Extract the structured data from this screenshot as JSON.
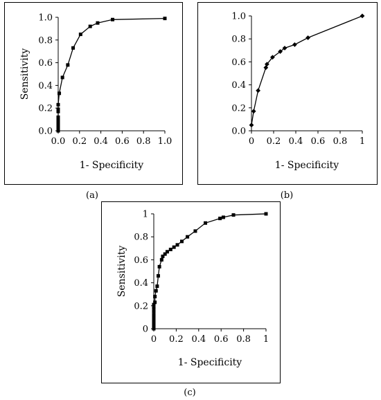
{
  "chart_data": [
    {
      "type": "line",
      "panel_label": "(a)",
      "xlabel": "1- Specificity",
      "ylabel": "Sensitivity",
      "xlim": [
        0,
        1
      ],
      "ylim": [
        0,
        1
      ],
      "xticks": [
        "0.0",
        "0.2",
        "0.4",
        "0.6",
        "0.8",
        "1.0"
      ],
      "yticks": [
        "0.0",
        "0.2",
        "0.4",
        "0.6",
        "0.8",
        "1.0"
      ],
      "marker": "square",
      "grid": false,
      "x": [
        0,
        0,
        0,
        0,
        0,
        0,
        0,
        0,
        0,
        0,
        0,
        0,
        0,
        0.01,
        0.04,
        0.09,
        0.14,
        0.21,
        0.3,
        0.37,
        0.51,
        1.0
      ],
      "y": [
        0,
        0.01,
        0.02,
        0.03,
        0.04,
        0.05,
        0.06,
        0.08,
        0.1,
        0.12,
        0.17,
        0.19,
        0.23,
        0.33,
        0.47,
        0.58,
        0.73,
        0.85,
        0.92,
        0.95,
        0.98,
        0.99
      ]
    },
    {
      "type": "line",
      "panel_label": "(b)",
      "xlabel": "1- Specificity",
      "ylabel": "",
      "xlim": [
        0,
        1
      ],
      "ylim": [
        0,
        1
      ],
      "xticks": [
        "0",
        "0.2",
        "0.4",
        "0.6",
        "0.8",
        "1"
      ],
      "yticks": [
        "0.0",
        "0.2",
        "0.4",
        "0.6",
        "0.8",
        "1.0"
      ],
      "marker": "diamond",
      "grid": false,
      "x": [
        0.0,
        0.02,
        0.06,
        0.13,
        0.14,
        0.19,
        0.26,
        0.3,
        0.39,
        0.51,
        1.0
      ],
      "y": [
        0.05,
        0.17,
        0.35,
        0.55,
        0.58,
        0.64,
        0.69,
        0.72,
        0.75,
        0.81,
        1.0
      ]
    },
    {
      "type": "line",
      "panel_label": "(c)",
      "xlabel": "1- Specificity",
      "ylabel": "Sensitivity",
      "xlim": [
        0,
        1
      ],
      "ylim": [
        0,
        1
      ],
      "xticks": [
        "0",
        "0.2",
        "0.4",
        "0.6",
        "0.8",
        "1"
      ],
      "yticks": [
        "0",
        "0.2",
        "0.4",
        "0.6",
        "0.8",
        "1"
      ],
      "marker": "square",
      "grid": false,
      "x": [
        0,
        0,
        0,
        0,
        0,
        0,
        0,
        0,
        0,
        0,
        0.01,
        0.01,
        0.02,
        0.03,
        0.04,
        0.05,
        0.07,
        0.08,
        0.1,
        0.12,
        0.15,
        0.18,
        0.21,
        0.25,
        0.3,
        0.37,
        0.46,
        0.59,
        0.62,
        0.71,
        1.0
      ],
      "y": [
        0,
        0.02,
        0.04,
        0.06,
        0.08,
        0.1,
        0.12,
        0.15,
        0.18,
        0.21,
        0.23,
        0.28,
        0.33,
        0.37,
        0.46,
        0.54,
        0.6,
        0.63,
        0.65,
        0.67,
        0.69,
        0.71,
        0.73,
        0.76,
        0.8,
        0.85,
        0.92,
        0.96,
        0.97,
        0.99,
        1.0
      ]
    }
  ]
}
